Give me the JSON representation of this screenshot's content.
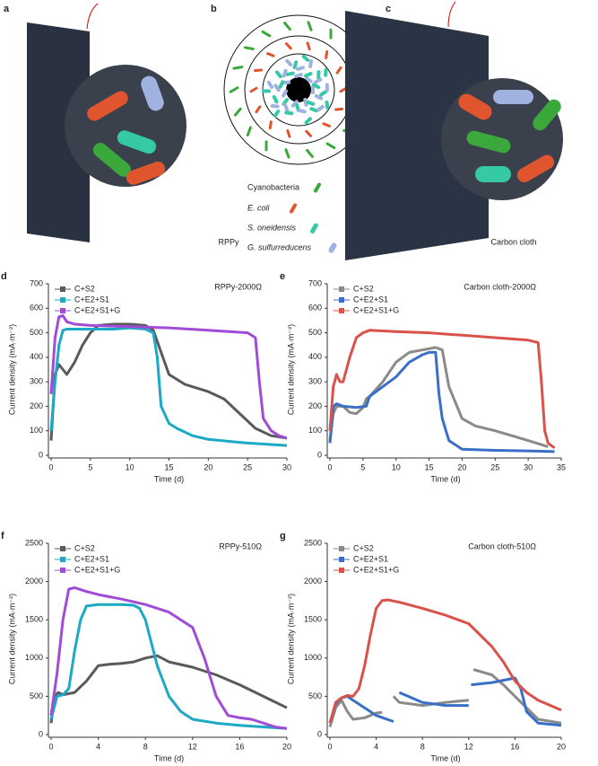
{
  "illustrations": {
    "panel_a": "a",
    "panel_b": "b",
    "panel_c": "c",
    "label_a": "RPPy",
    "label_c": "Carbon cloth",
    "legend_b": [
      "Cyanobacteria",
      "E. coli",
      "S. oneidensis",
      "G. sulfurreducens"
    ]
  },
  "chart_data": [
    {
      "type": "line",
      "panel": "d",
      "title": "RPPy-2000Ω",
      "x_label": "Time (d)",
      "y_label": "Current density (mA·m⁻²)",
      "xlim": [
        0,
        30
      ],
      "xticks": [
        0,
        5,
        10,
        15,
        20,
        25,
        30
      ],
      "ylim": [
        0,
        700
      ],
      "yticks": [
        0,
        100,
        200,
        300,
        400,
        500,
        600,
        700
      ],
      "series": [
        {
          "name": "C+S2",
          "color": "#5a5a5a",
          "x": [
            0,
            0.5,
            1,
            2,
            3,
            4,
            5,
            6,
            8,
            10,
            12,
            13,
            14,
            15,
            17,
            20,
            22,
            24,
            26,
            28,
            30
          ],
          "values": [
            60,
            330,
            370,
            330,
            380,
            450,
            500,
            530,
            535,
            535,
            530,
            510,
            420,
            330,
            290,
            260,
            230,
            170,
            110,
            80,
            70
          ]
        },
        {
          "name": "C+E2+S1",
          "color": "#1ba9c6",
          "x": [
            0,
            0.5,
            1,
            1.5,
            2,
            3,
            5,
            8,
            10,
            12,
            13,
            13.5,
            14,
            15,
            16,
            18,
            20,
            25,
            30
          ],
          "values": [
            100,
            300,
            450,
            510,
            515,
            515,
            515,
            515,
            520,
            515,
            500,
            400,
            200,
            130,
            110,
            80,
            65,
            50,
            40
          ]
        },
        {
          "name": "C+E2+S1+G",
          "color": "#a04cd6",
          "x": [
            0,
            0.5,
            1,
            1.5,
            2,
            3,
            5,
            10,
            15,
            20,
            25,
            26,
            26.5,
            27,
            28,
            29,
            30
          ],
          "values": [
            250,
            480,
            565,
            570,
            545,
            535,
            530,
            525,
            520,
            510,
            500,
            480,
            300,
            150,
            100,
            80,
            70
          ]
        }
      ]
    },
    {
      "type": "line",
      "panel": "e",
      "title": "Carbon cloth-2000Ω",
      "x_label": "Time (d)",
      "y_label": "Current density (mA·m⁻²)",
      "xlim": [
        0,
        35
      ],
      "xticks": [
        0,
        5,
        10,
        15,
        20,
        25,
        30,
        35
      ],
      "ylim": [
        0,
        700
      ],
      "yticks": [
        0,
        100,
        200,
        300,
        400,
        500,
        600,
        700
      ],
      "series": [
        {
          "name": "C+S2",
          "color": "#8a8a8a",
          "x": [
            0,
            0.5,
            1,
            2,
            3,
            4,
            5,
            5.5,
            6,
            8,
            10,
            12,
            15,
            16,
            17,
            18,
            20,
            22,
            25,
            30,
            33
          ],
          "values": [
            60,
            170,
            200,
            200,
            175,
            170,
            195,
            230,
            240,
            300,
            380,
            420,
            435,
            440,
            430,
            280,
            150,
            120,
            100,
            60,
            35
          ]
        },
        {
          "name": "C+E2+S1",
          "color": "#3a6fc7",
          "x": [
            0,
            0.5,
            1,
            2,
            4,
            5.5,
            6,
            8,
            10,
            12,
            14,
            15,
            16,
            16.5,
            17,
            18,
            20,
            25,
            30,
            34
          ],
          "values": [
            50,
            200,
            210,
            200,
            195,
            200,
            240,
            280,
            320,
            380,
            410,
            420,
            420,
            250,
            150,
            60,
            25,
            20,
            18,
            15
          ]
        },
        {
          "name": "C+E2+S1+G",
          "color": "#d9534a",
          "x": [
            0,
            0.5,
            1,
            1.5,
            2,
            3,
            4,
            5,
            6,
            10,
            15,
            20,
            25,
            30,
            31.5,
            32,
            32.5,
            33,
            34
          ],
          "values": [
            100,
            280,
            330,
            300,
            300,
            400,
            480,
            500,
            510,
            505,
            500,
            490,
            480,
            470,
            460,
            300,
            100,
            50,
            30
          ]
        }
      ]
    },
    {
      "type": "line",
      "panel": "f",
      "title": "RPPy-510Ω",
      "x_label": "Time (d)",
      "y_label": "Current density (mA·m⁻²)",
      "xlim": [
        0,
        20
      ],
      "xticks": [
        0,
        4,
        8,
        12,
        16,
        20
      ],
      "ylim": [
        0,
        2500
      ],
      "yticks": [
        0,
        500,
        1000,
        1500,
        2000,
        2500
      ],
      "series": [
        {
          "name": "C+S2",
          "color": "#5a5a5a",
          "x": [
            0,
            0.3,
            0.6,
            1,
            2,
            3,
            4,
            5,
            6,
            7,
            8,
            9,
            10,
            12,
            14,
            16,
            18,
            20
          ],
          "values": [
            150,
            500,
            550,
            520,
            550,
            700,
            900,
            920,
            930,
            950,
            1000,
            1030,
            950,
            880,
            780,
            650,
            500,
            350
          ]
        },
        {
          "name": "C+E2+S1",
          "color": "#1ba9c6",
          "x": [
            0,
            0.5,
            1,
            1.5,
            2,
            2.5,
            3,
            4,
            6,
            7,
            7.5,
            8,
            9,
            10,
            11,
            12,
            14,
            16,
            18,
            20
          ],
          "values": [
            200,
            500,
            520,
            600,
            1100,
            1500,
            1680,
            1700,
            1700,
            1690,
            1650,
            1500,
            900,
            500,
            300,
            200,
            150,
            120,
            100,
            80
          ]
        },
        {
          "name": "C+E2+S1+G",
          "color": "#a04cd6",
          "x": [
            0,
            0.5,
            1,
            1.5,
            2,
            3,
            4,
            6,
            8,
            10,
            12,
            13,
            14,
            15,
            16,
            17,
            18,
            19,
            20
          ],
          "values": [
            250,
            800,
            1500,
            1900,
            1920,
            1870,
            1830,
            1770,
            1700,
            1600,
            1400,
            1000,
            500,
            250,
            220,
            200,
            150,
            100,
            80
          ]
        }
      ]
    },
    {
      "type": "line",
      "panel": "g",
      "title": "Carbon cloth-510Ω",
      "x_label": "Time (d)",
      "y_label": "Current density (mA·m⁻²)",
      "xlim": [
        0,
        20
      ],
      "xticks": [
        0,
        4,
        8,
        12,
        16,
        20
      ],
      "ylim": [
        0,
        2500
      ],
      "yticks": [
        0,
        500,
        1000,
        1500,
        2000,
        2500
      ],
      "series": [
        {
          "name": "C+S2",
          "color": "#8a8a8a",
          "x": [
            0,
            0.5,
            1,
            1.5,
            2,
            3,
            4,
            4.5,
            5,
            5.5,
            6,
            8,
            10,
            12,
            12.2,
            12.4,
            14,
            15,
            16,
            17,
            18,
            20
          ],
          "values": [
            100,
            350,
            450,
            300,
            200,
            220,
            280,
            290,
            null,
            500,
            420,
            380,
            420,
            450,
            null,
            850,
            780,
            650,
            500,
            350,
            200,
            150
          ]
        },
        {
          "name": "C+E2+S1",
          "color": "#3a6fc7",
          "x": [
            0,
            0.5,
            1,
            1.5,
            2,
            3,
            4,
            5.5,
            5.6,
            6,
            8,
            10,
            12,
            12.1,
            12.2,
            14,
            16,
            16.5,
            17,
            18,
            20
          ],
          "values": [
            150,
            400,
            480,
            500,
            450,
            350,
            250,
            170,
            null,
            550,
            420,
            380,
            380,
            null,
            650,
            680,
            740,
            600,
            300,
            150,
            120
          ]
        },
        {
          "name": "C+E2+S1+G",
          "color": "#d9534a",
          "x": [
            0,
            0.5,
            1,
            1.5,
            2,
            2.5,
            3,
            3.5,
            4,
            4.5,
            5,
            6,
            8,
            10,
            12,
            14,
            15,
            16,
            17,
            18,
            20
          ],
          "values": [
            150,
            420,
            480,
            510,
            500,
            600,
            900,
            1300,
            1650,
            1750,
            1760,
            1730,
            1650,
            1560,
            1450,
            1150,
            950,
            700,
            550,
            450,
            320
          ]
        }
      ]
    }
  ]
}
